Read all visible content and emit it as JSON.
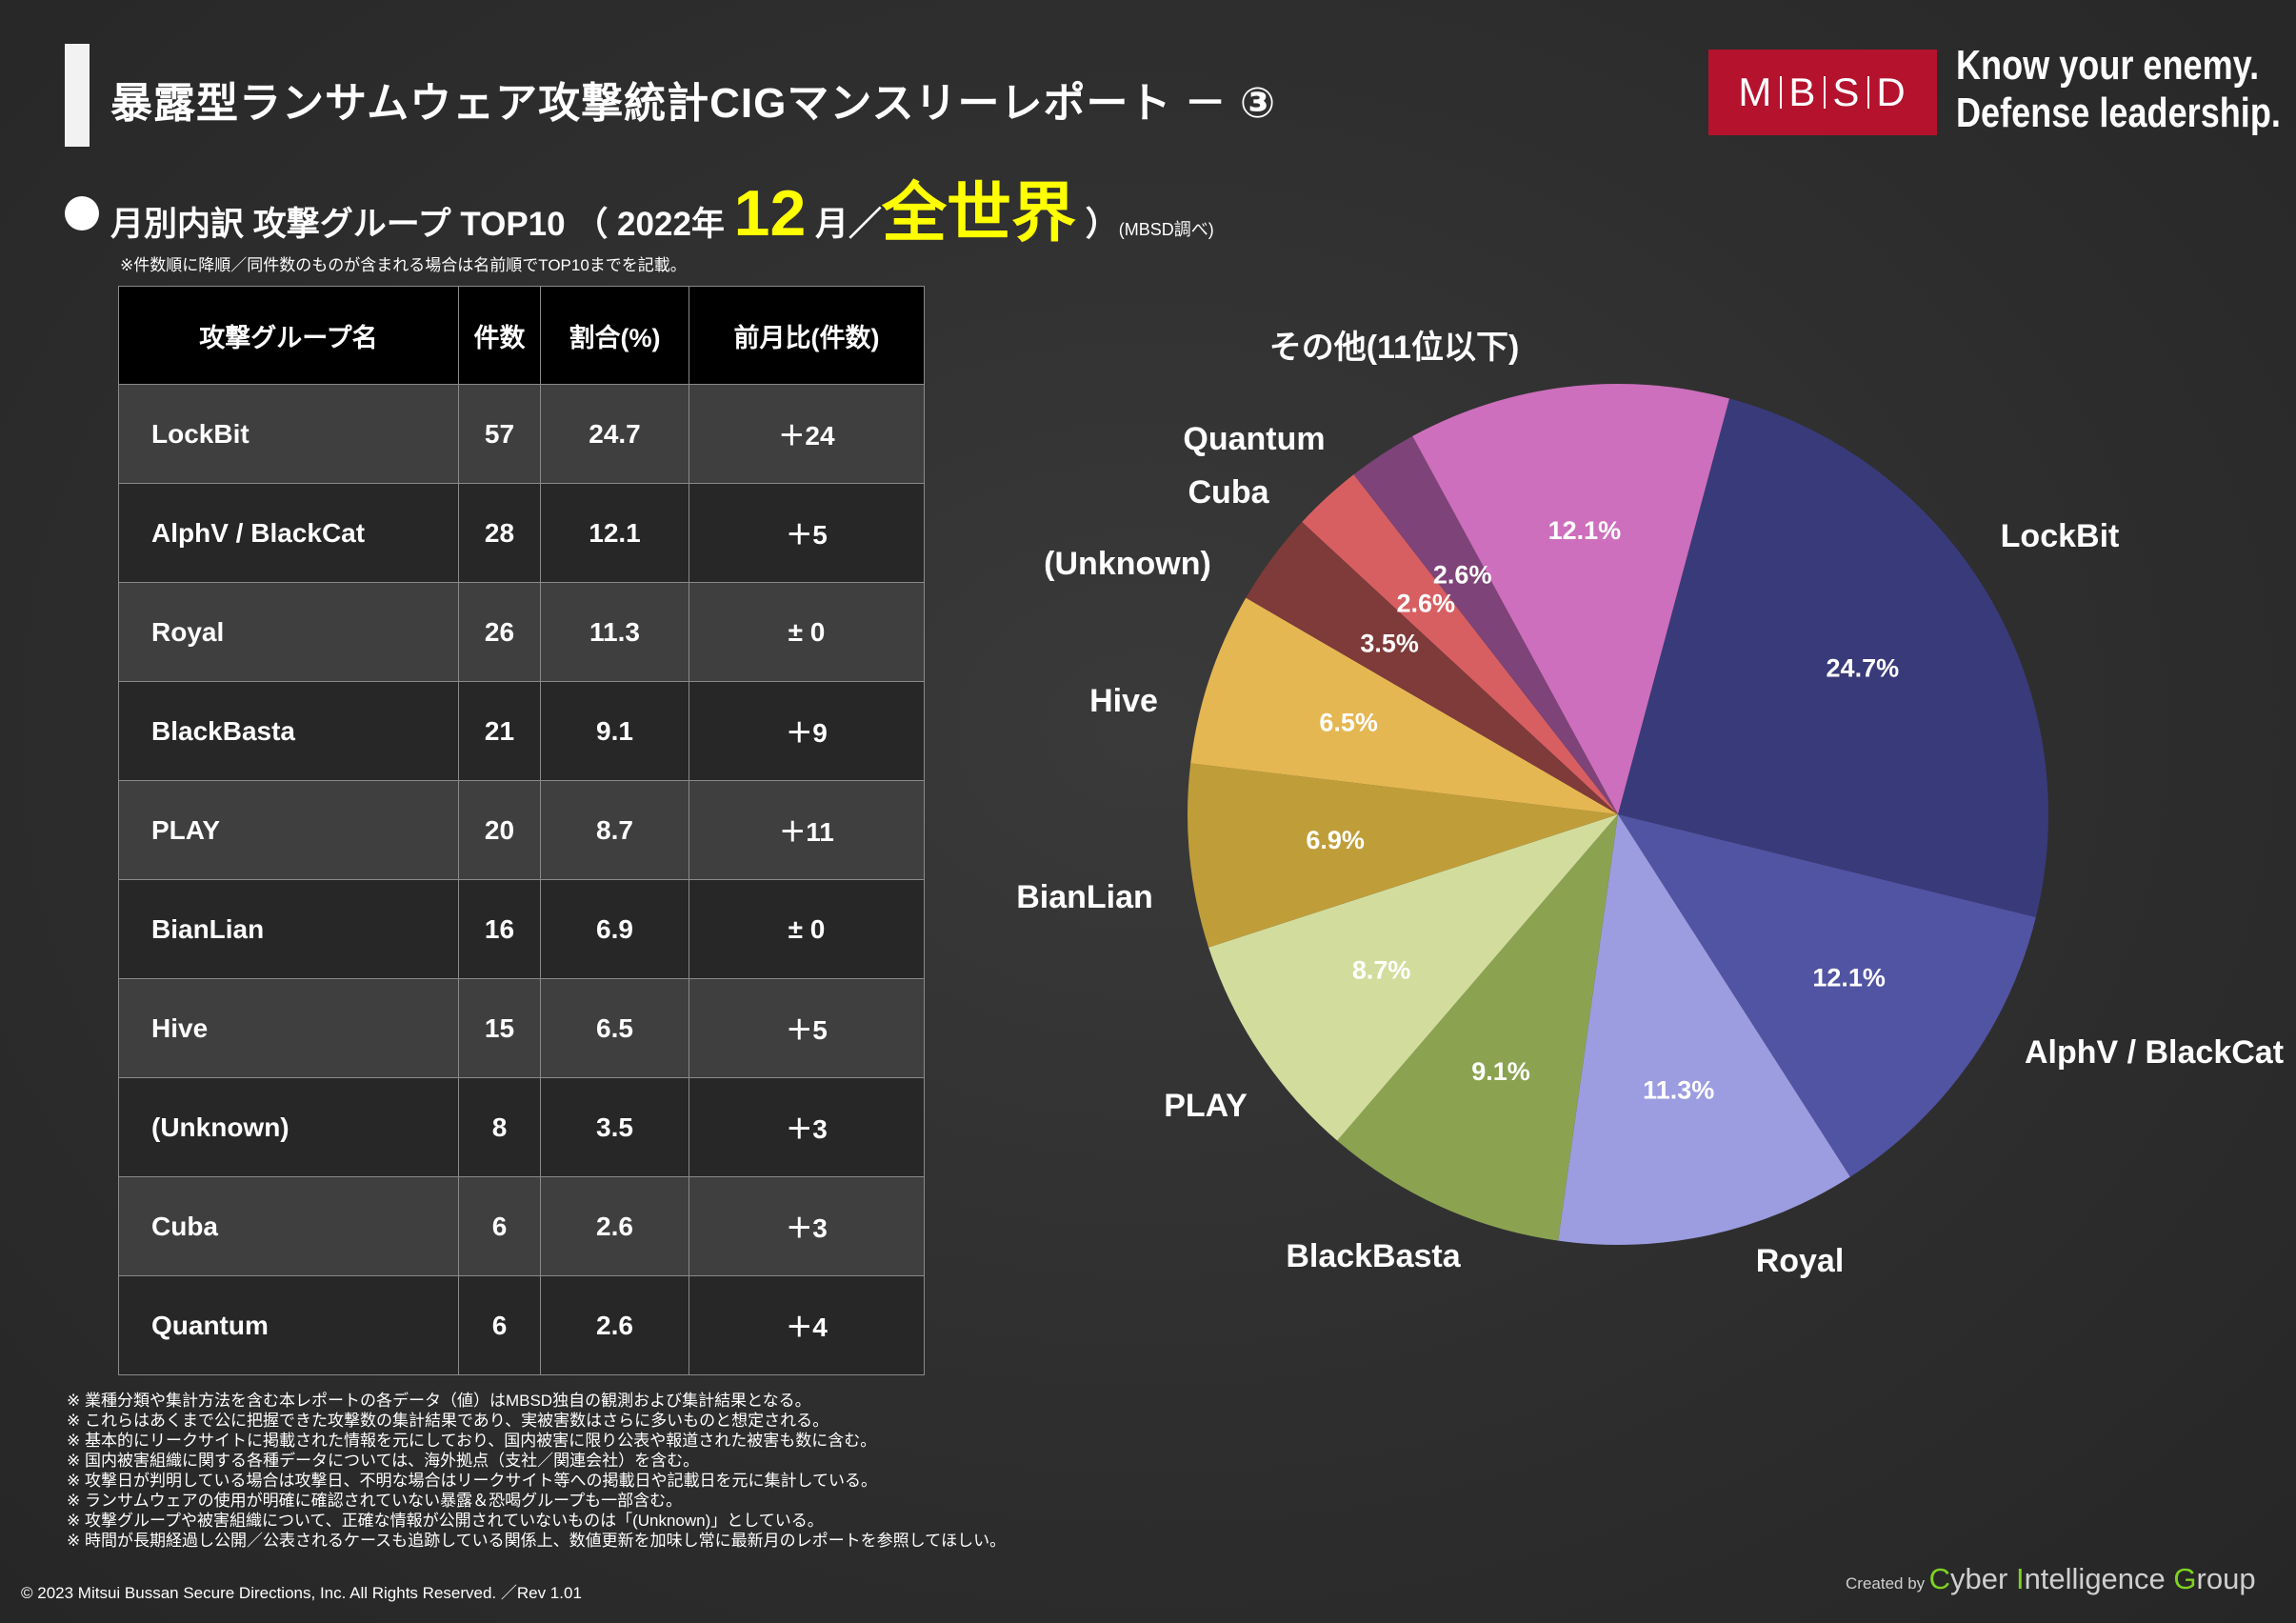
{
  "page": {
    "title": "暴露型ランサムウェア攻撃統計CIGマンスリーレポート － ③",
    "logo": "MBSD",
    "logo_letters": [
      "M",
      "B",
      "S",
      "D"
    ],
    "tagline_line1": "Know your enemy.",
    "tagline_line2": "Defense leadership.",
    "subtitle_prefix": "月別内訳 攻撃グループ TOP10 （ 2022年 ",
    "subtitle_month": "12",
    "subtitle_mid": " 月／",
    "subtitle_region": "全世界",
    "subtitle_suffix": " ）",
    "subtitle_note": "(MBSD調べ)",
    "table_note": "※件数順に降順／同件数のものが含まれる場合は名前順でTOP10までを記載。"
  },
  "table": {
    "headers": [
      "攻撃グループ名",
      "件数",
      "割合(%)",
      "前月比(件数)"
    ],
    "rows": [
      [
        "LockBit",
        "57",
        "24.7",
        "＋24"
      ],
      [
        "AlphV / BlackCat",
        "28",
        "12.1",
        "＋5"
      ],
      [
        "Royal",
        "26",
        "11.3",
        "± 0"
      ],
      [
        "BlackBasta",
        "21",
        "9.1",
        "＋9"
      ],
      [
        "PLAY",
        "20",
        "8.7",
        "＋11"
      ],
      [
        "BianLian",
        "16",
        "6.9",
        "± 0"
      ],
      [
        "Hive",
        "15",
        "6.5",
        "＋5"
      ],
      [
        "(Unknown)",
        "8",
        "3.5",
        "＋3"
      ],
      [
        "Cuba",
        "6",
        "2.6",
        "＋3"
      ],
      [
        "Quantum",
        "6",
        "2.6",
        "＋4"
      ]
    ]
  },
  "chart_data": {
    "type": "pie",
    "categories": [
      "LockBit",
      "AlphV / BlackCat",
      "Royal",
      "BlackBasta",
      "PLAY",
      "BianLian",
      "Hive",
      "(Unknown)",
      "Cuba",
      "Quantum",
      "その他(11位以下)"
    ],
    "values": [
      24.7,
      12.1,
      11.3,
      9.1,
      8.7,
      6.9,
      6.5,
      3.5,
      2.6,
      2.6,
      12.1
    ],
    "data_labels": [
      "24.7%",
      "12.1%",
      "11.3%",
      "9.1%",
      "8.7%",
      "6.9%",
      "6.5%",
      "3.5%",
      "2.6%",
      "2.6%",
      "12.1%"
    ],
    "colors": [
      "#393a7a",
      "#5153a3",
      "#9c9ce0",
      "#8ba351",
      "#d2dd9d",
      "#bf9e3a",
      "#e5b752",
      "#7f3a3a",
      "#d75f62",
      "#7e4378",
      "#cd6fbc"
    ],
    "start_angle_deg": 15,
    "direction": "clockwise",
    "legend": "none"
  },
  "footnotes": [
    "※ 業種分類や集計方法を含む本レポートの各データ（値）はMBSD独自の観測および集計結果となる。",
    "※ これらはあくまで公に把握できた攻撃数の集計結果であり、実被害数はさらに多いものと想定される。",
    "※ 基本的にリークサイトに掲載された情報を元にしており、国内被害に限り公表や報道された被害も数に含む。",
    "※ 国内被害組織に関する各種データについては、海外拠点（支社／関連会社）を含む。",
    "※ 攻撃日が判明している場合は攻撃日、不明な場合はリークサイト等への掲載日や記載日を元に集計している。",
    "※ ランサムウェアの使用が明確に確認されていない暴露＆恐喝グループも一部含む。",
    "※ 攻撃グループや被害組織について、正確な情報が公開されていないものは「(Unknown)」としている。",
    "※ 時間が長期経過し公開／公表されるケースも追跡している関係上、数値更新を加味し常に最新月のレポートを参照してほしい。"
  ],
  "copyright": "© 2023 Mitsui Bussan Secure Directions, Inc.  All Rights Reserved. ／Rev 1.01",
  "credit": {
    "created_by": "Created by",
    "c": "C",
    "yber": "yber ",
    "i": "I",
    "ntelligence": "ntelligence ",
    "g": "G",
    "roup": "roup"
  }
}
